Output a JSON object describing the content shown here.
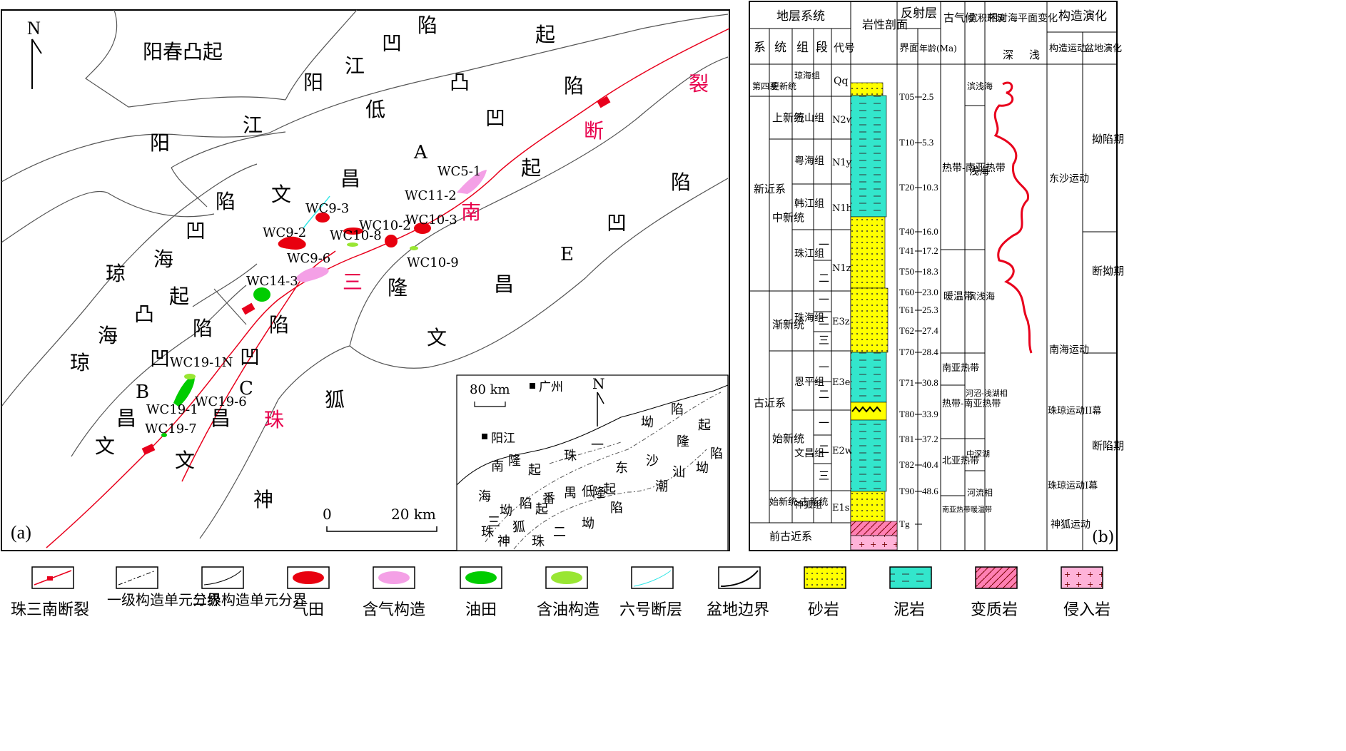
{
  "map": {
    "panel_label": "(a)",
    "north": "N",
    "units": [
      {
        "text": "阳春凸起"
      },
      {
        "text": "阳江凹陷",
        "chars": [
          "阳",
          "江",
          "凹",
          "陷"
        ]
      },
      {
        "text": "阳江低凸起",
        "chars": [
          "阳",
          "江",
          "低",
          "凸",
          "起"
        ]
      },
      {
        "text": "文昌A凹陷"
      },
      {
        "text": "琼海凹陷"
      },
      {
        "text": "琼海凸起"
      },
      {
        "text": "文昌B凹陷"
      },
      {
        "text": "文昌C凹陷"
      },
      {
        "text": "文昌E凹陷"
      },
      {
        "text": "珠三南断裂"
      },
      {
        "text": "神狐隆起"
      }
    ],
    "chars": {
      "yangchun": "阳春凸起",
      "c_yang1": "阳",
      "c_jiang1": "江",
      "c_ao1": "凹",
      "c_xian1": "陷",
      "c_yang2": "阳",
      "c_jiang2": "江",
      "c_di": "低",
      "c_tu2": "凸",
      "c_qi2": "起",
      "c_wen_a": "文",
      "c_chang_a": "昌",
      "c_A": "A",
      "c_qi_a": "起",
      "c_xian_e": "陷",
      "c_ao_e": "凹",
      "c_E": "E",
      "c_chang_e": "昌",
      "c_wen_e": "文",
      "c_xian_q": "陷",
      "c_ao_q": "凹",
      "c_hai_q": "海",
      "c_qiong_q": "琼",
      "c_qi_q": "起",
      "c_tu_q": "凸",
      "c_hai_q2": "海",
      "c_qiong_q2": "琼",
      "c_ao_b": "凹",
      "c_B": "B",
      "c_chang_b": "昌",
      "c_wen_b": "文",
      "c_xian_c": "陷",
      "c_ao_c": "凹",
      "c_C": "C",
      "c_chang_c": "昌",
      "c_wen_c": "文",
      "c_hu": "狐",
      "c_shen": "神",
      "c_san": "三",
      "c_long": "隆",
      "c_xian_l": "陷",
      "f_lie": "裂",
      "f_duan": "断",
      "f_nan": "南",
      "f_san": "三",
      "f_zhu": "珠"
    },
    "wells": [
      "WC9-3",
      "WC9-2",
      "WC9-6",
      "WC10-8",
      "WC10-2",
      "WC10-3",
      "WC10-9",
      "WC11-2",
      "WC5-1",
      "WC14-3",
      "WC19-1N",
      "WC19-1",
      "WC19-6",
      "WC19-7"
    ],
    "scale": {
      "zero": "0",
      "label": "20 km"
    },
    "inset": {
      "scale": "80 km",
      "north": "N",
      "city1": "广州",
      "city2": "阳江",
      "chars": [
        "陷",
        "起",
        "坳",
        "隆",
        "珠",
        "一",
        "东",
        "沙",
        "汕",
        "坳",
        "陷",
        "南",
        "隆",
        "起",
        "潮",
        "海",
        "番",
        "禺",
        "低",
        "隆",
        "起",
        "坳",
        "陷",
        "起",
        "陷",
        "三",
        "狐",
        "坳",
        "珠",
        "二",
        "珠",
        "神",
        "坳"
      ]
    }
  },
  "strat": {
    "panel_label": "(b)",
    "headers": {
      "strat_system": "地层系统",
      "lithology": "岩性剖面",
      "reflector": "反射层",
      "paleoclimate": "古气候",
      "environment": "沉积环境",
      "sealevel": "相对海平面变化",
      "sealevel_deep": "深",
      "sealevel_shallow": "浅",
      "tectonic": "构造演化",
      "xi": "系",
      "tong": "统",
      "zu": "组",
      "duan": "段",
      "daihao": "代号",
      "jiemian": "界面",
      "nianling": "年龄(Ma)",
      "gouzao": "构造运动",
      "pendi": "盆地演化"
    },
    "systems": [
      "第四系",
      "新近系",
      "古近系",
      "前古近系"
    ],
    "series": [
      "更新统",
      "上新统",
      "中新统",
      "渐新统",
      "始新统",
      "始新统-古新统"
    ],
    "formations": [
      "琼海组",
      "万山组",
      "粤海组",
      "韩江组",
      "珠江组",
      "珠海组",
      "恩平组",
      "文昌组",
      "神狐组"
    ],
    "members": [
      "一",
      "二",
      "一",
      "二",
      "三",
      "一",
      "二",
      "一",
      "二",
      "三"
    ],
    "codes": [
      "Qq",
      "N2w",
      "N1y",
      "N1h",
      "N1z",
      "E3z",
      "E3e",
      "E2w",
      "E1s"
    ],
    "reflectors": [
      {
        "name": "T05",
        "age": "2.5"
      },
      {
        "name": "T10",
        "age": "5.3"
      },
      {
        "name": "T20",
        "age": "10.3"
      },
      {
        "name": "T40",
        "age": "16.0"
      },
      {
        "name": "T41",
        "age": "17.2"
      },
      {
        "name": "T50",
        "age": "18.3"
      },
      {
        "name": "T60",
        "age": "23.0"
      },
      {
        "name": "T61",
        "age": "25.3"
      },
      {
        "name": "T62",
        "age": "27.4"
      },
      {
        "name": "T70",
        "age": "28.4"
      },
      {
        "name": "T71",
        "age": "30.8"
      },
      {
        "name": "T80",
        "age": "33.9"
      },
      {
        "name": "T81",
        "age": "37.2"
      },
      {
        "name": "T82",
        "age": "40.4"
      },
      {
        "name": "T90",
        "age": "48.6"
      },
      {
        "name": "Tg",
        "age": ""
      }
    ],
    "climate": [
      "热带-南亚热带",
      "暖温带",
      "南亚热带",
      "热带-南亚热带",
      "北亚热带",
      "南亚热带暖温带"
    ],
    "environment": [
      "滨浅海",
      "浅海",
      "滨浅海",
      "河沼-浅湖相",
      "中深湖",
      "河流相"
    ],
    "movements": [
      "东沙运动",
      "南海运动",
      "珠琼运动II幕",
      "珠琼运动I幕",
      "神狐运动"
    ],
    "basin_stages": [
      "拗陷期",
      "断拗期",
      "断陷期"
    ]
  },
  "legend": [
    {
      "label": "珠三南断裂"
    },
    {
      "label": "一级构造单元分界"
    },
    {
      "label": "二级构造单元分界"
    },
    {
      "label": "气田"
    },
    {
      "label": "含气构造"
    },
    {
      "label": "油田"
    },
    {
      "label": "含油构造"
    },
    {
      "label": "六号断层"
    },
    {
      "label": "盆地边界"
    },
    {
      "label": "砂岩"
    },
    {
      "label": "泥岩"
    },
    {
      "label": "变质岩"
    },
    {
      "label": "侵入岩"
    }
  ],
  "colors": {
    "gas_field": "#e8000f",
    "gas_structure": "#f4a0e6",
    "oil_field": "#00cc00",
    "oil_structure": "#99e633",
    "fault6": "#33e6e6",
    "fault": "#e8001c",
    "sand": "#ffff00",
    "mud": "#33e6cc",
    "meta": "#ff80b3",
    "intrusive": "#ffb3d9"
  }
}
